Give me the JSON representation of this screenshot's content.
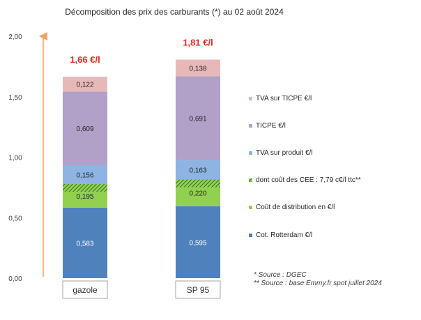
{
  "chart_data": {
    "type": "bar",
    "stacked": true,
    "title": "Décomposition des prix des carburants (*) au 02 août 2024",
    "categories": [
      "gazole",
      "SP 95"
    ],
    "totals": [
      "1,66 €/l",
      "1,81 €/l"
    ],
    "ylim": [
      0,
      2.0
    ],
    "yticks": [
      "0,00",
      "0,50",
      "1,00",
      "1,50",
      "2,00"
    ],
    "grid": false,
    "legend_position": "right",
    "series": [
      {
        "name": "Cot. Rotterdam €/l",
        "values": [
          0.583,
          0.595
        ],
        "labels": [
          "0,583",
          "0,595"
        ],
        "color": "#4f81bd"
      },
      {
        "name": "Coût de distribution en €/l",
        "values": [
          0.195,
          0.22
        ],
        "labels": [
          "0,195",
          "0,220"
        ],
        "color": "#92d050"
      },
      {
        "name": "dont coût des CEE : 7,79 c€/l ttc**",
        "values": [
          0.0779,
          0.0779
        ],
        "labels": [
          "",
          ""
        ],
        "color": "#3e8e36",
        "pattern": "hatched",
        "included_in": "Coût de distribution en €/l"
      },
      {
        "name": "TVA sur produit €/l",
        "values": [
          0.156,
          0.163
        ],
        "labels": [
          "0,156",
          "0,163"
        ],
        "color": "#8db4e2"
      },
      {
        "name": "TICPE €/l",
        "values": [
          0.609,
          0.691
        ],
        "labels": [
          "0,609",
          "0,691"
        ],
        "color": "#b1a0c7"
      },
      {
        "name": "TVA sur TICPE €/l",
        "values": [
          0.122,
          0.138
        ],
        "labels": [
          "0,122",
          "0,138"
        ],
        "color": "#e6b9b8"
      }
    ],
    "axis_color": "#f0a35a",
    "total_color": "#e8281e"
  },
  "sources": {
    "line1": "* Source : DGEC",
    "line2": "** Source : base Emmy.fr spot juillet 2024"
  }
}
